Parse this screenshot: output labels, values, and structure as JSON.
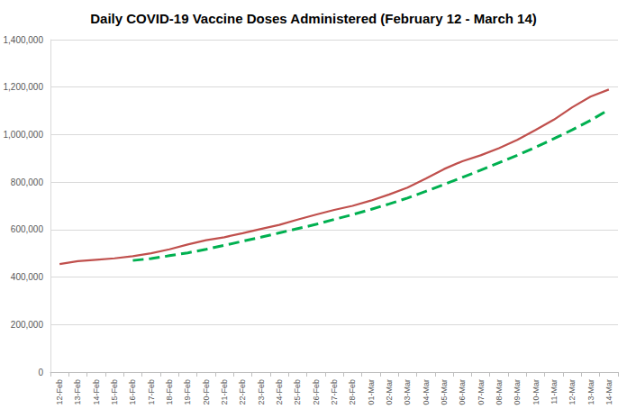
{
  "chart_data": {
    "type": "line",
    "title": "Daily COVID-19 Vaccine Doses Administered (February 12 - March 14)",
    "categories": [
      "12-Feb",
      "13-Feb",
      "14-Feb",
      "15-Feb",
      "16-Feb",
      "17-Feb",
      "18-Feb",
      "19-Feb",
      "20-Feb",
      "21-Feb",
      "22-Feb",
      "23-Feb",
      "24-Feb",
      "25-Feb",
      "26-Feb",
      "27-Feb",
      "28-Feb",
      "01-Mar",
      "02-Mar",
      "03-Mar",
      "04-Mar",
      "05-Mar",
      "06-Mar",
      "07-Mar",
      "08-Mar",
      "09-Mar",
      "10-Mar",
      "11-Mar",
      "12-Mar",
      "13-Mar",
      "14-Mar"
    ],
    "series": [
      {
        "color": "#c0504d",
        "line_style": "solid",
        "values": [
          455000,
          467000,
          473000,
          479000,
          488000,
          500000,
          517000,
          537000,
          555000,
          568000,
          585000,
          603000,
          620000,
          642000,
          663000,
          683000,
          700000,
          722000,
          748000,
          777000,
          815000,
          855000,
          888000,
          913000,
          943000,
          978000,
          1020000,
          1063000,
          1115000,
          1160000,
          1190000
        ]
      },
      {
        "color": "#00b050",
        "line_style": "dashed",
        "values": [
          null,
          null,
          null,
          null,
          470000,
          478000,
          490000,
          502000,
          517000,
          534000,
          551000,
          568000,
          586000,
          604000,
          622000,
          643000,
          663000,
          685000,
          708000,
          733000,
          761000,
          790000,
          820000,
          850000,
          882000,
          913000,
          947000,
          983000,
          1020000,
          1060000,
          1105000
        ]
      }
    ],
    "ylim": [
      0,
      1400000
    ],
    "yticks": [
      0,
      {
        "value": 200000,
        "label": "200,000"
      },
      {
        "value": 400000,
        "label": "400,000"
      },
      {
        "value": 600000,
        "label": "600,000"
      },
      {
        "value": 800000,
        "label": "800,000"
      },
      {
        "value": 1000000,
        "label": "1,000,000"
      },
      {
        "value": 1200000,
        "label": "1,200,000"
      },
      {
        "value": 1400000,
        "label": "1,400,000"
      }
    ],
    "grid": true
  }
}
